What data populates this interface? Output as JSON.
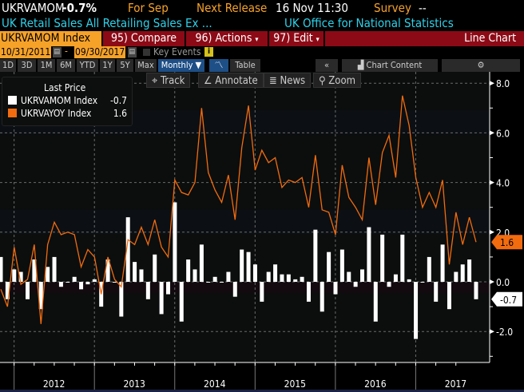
{
  "header": {
    "ticker": "UKRVAMOM",
    "change": "-0.7%",
    "period": "For Sep",
    "next_release_label": "Next Release",
    "next_release_value": "16 Nov 11:30",
    "survey_label": "Survey",
    "survey_value": "--",
    "description": "UK Retail Sales All Retailing Sales Ex ...",
    "source": "UK Office for National Statistics"
  },
  "toolbar": {
    "security": "UKRVAMOM Index",
    "compare": "95) Compare",
    "actions": "96) Actions",
    "edit": "97) Edit",
    "chart_type": "Line Chart",
    "start_date": "10/31/2011",
    "date_sep": "-",
    "end_date": "09/30/2017",
    "key_events": "Key Events",
    "info": "i",
    "ranges": [
      "1D",
      "3D",
      "1M",
      "6M",
      "YTD",
      "1Y",
      "5Y",
      "Max"
    ],
    "frequency": "Monthly ▼",
    "table": "Table",
    "collapse": "«",
    "chart_content": "Chart Content",
    "settings": "⚙",
    "track": "Track",
    "annotate": "Annotate",
    "news": "News",
    "zoom": "Zoom"
  },
  "legend": {
    "title": "Last Price",
    "items": [
      {
        "name": "UKRVAMOM Index",
        "value": "-0.7",
        "color": "#ffffff"
      },
      {
        "name": "UKRVAYOY Index",
        "value": "1.6",
        "color": "#f26b0f"
      }
    ]
  },
  "chart_data": {
    "type": "bar+line",
    "x_start": "2011-10",
    "x_end": "2017-09",
    "frequency": "monthly",
    "x_tick_labels": [
      "2012",
      "2013",
      "2014",
      "2015",
      "2016",
      "2017"
    ],
    "y_tick_labels": [
      "8.0",
      "6.0",
      "4.0",
      "2.0",
      "0.0",
      "-2.0"
    ],
    "ylim": [
      -3,
      8.2
    ],
    "grid": true,
    "series": [
      {
        "name": "UKRVAMOM Index",
        "type": "bar",
        "color": "#ffffff",
        "last": "-0.7",
        "values": [
          1.0,
          -0.7,
          0.5,
          0.4,
          -0.7,
          0.9,
          -1.1,
          0.6,
          1.0,
          -0.2,
          0.0,
          0.2,
          -0.3,
          -0.1,
          0.1,
          -1.0,
          0.9,
          0.0,
          -1.4,
          2.6,
          0.8,
          0.5,
          -0.7,
          1.1,
          -1.3,
          -0.5,
          3.2,
          -1.6,
          0.9,
          0.5,
          1.5,
          0.0,
          0.2,
          0.0,
          0.4,
          -0.6,
          1.3,
          1.2,
          0.7,
          -0.8,
          0.4,
          0.7,
          0.3,
          0.3,
          0.1,
          0.2,
          -0.8,
          2.1,
          -1.2,
          1.2,
          -0.5,
          1.3,
          0.4,
          -0.2,
          0.5,
          2.2,
          -1.6,
          1.9,
          -0.2,
          0.3,
          1.9,
          0.1,
          -2.3,
          0.0,
          1.0,
          -0.8,
          1.5,
          -1.1,
          0.4,
          0.7,
          0.9,
          -0.7
        ]
      },
      {
        "name": "UKRVAYOY Index",
        "type": "line",
        "color": "#f26b0f",
        "last": "1.6",
        "values": [
          -0.3,
          -1.0,
          1.4,
          -0.1,
          0.1,
          1.5,
          -1.7,
          1.5,
          2.4,
          1.9,
          2.0,
          1.9,
          0.6,
          1.3,
          1.0,
          -0.5,
          1.0,
          0.1,
          -0.2,
          1.7,
          1.5,
          2.2,
          1.5,
          2.5,
          1.4,
          1.0,
          4.1,
          3.6,
          3.5,
          4.0,
          7.0,
          4.4,
          3.7,
          3.2,
          4.3,
          2.5,
          5.4,
          7.1,
          4.5,
          5.3,
          4.8,
          5.0,
          3.8,
          4.1,
          4.0,
          4.2,
          3.0,
          5.1,
          2.9,
          2.8,
          1.9,
          4.7,
          3.4,
          3.0,
          2.5,
          5.0,
          3.1,
          5.2,
          5.9,
          4.2,
          7.5,
          6.3,
          4.2,
          3.0,
          3.6,
          3.0,
          4.1,
          0.7,
          2.8,
          1.5,
          2.6,
          1.6
        ]
      }
    ]
  }
}
